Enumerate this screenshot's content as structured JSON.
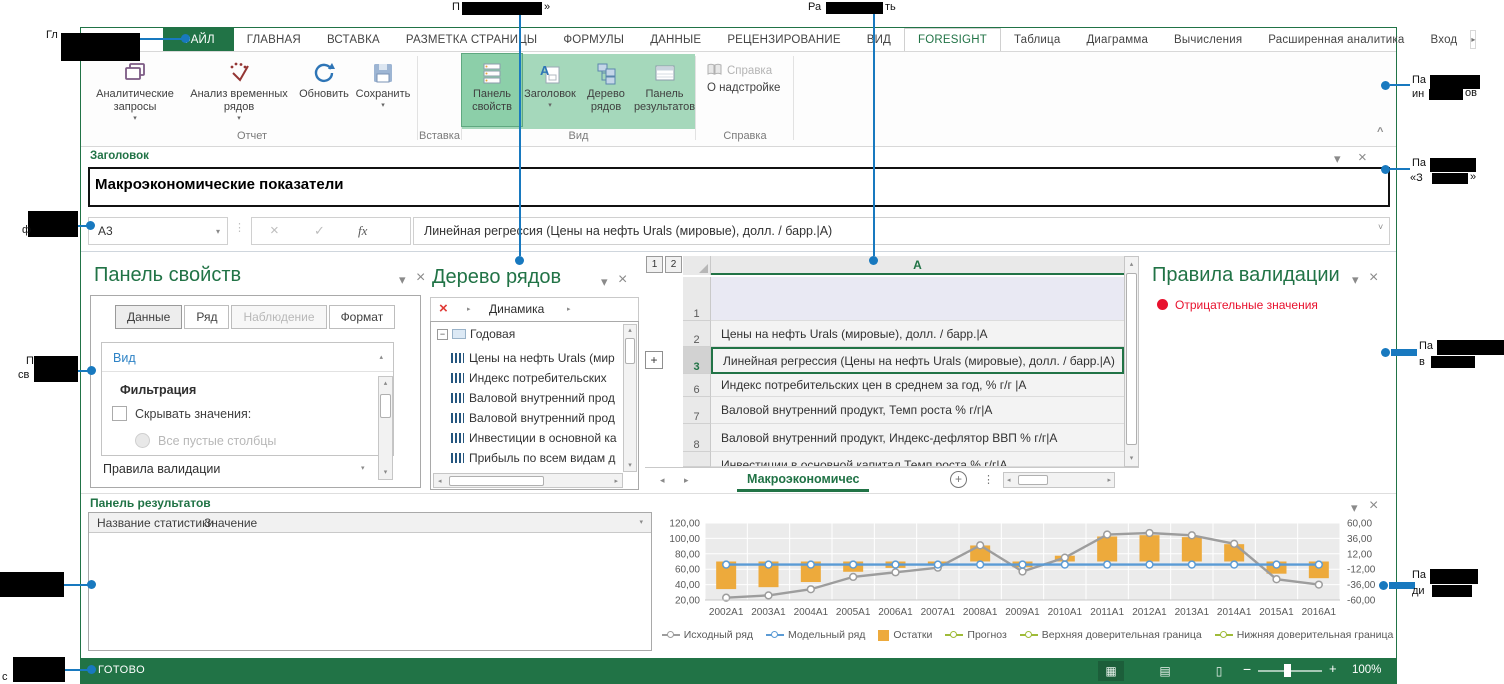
{
  "ribbon": {
    "tabs": [
      {
        "label": "ФАЙЛ"
      },
      {
        "label": "ГЛАВНАЯ"
      },
      {
        "label": "ВСТАВКА"
      },
      {
        "label": "РАЗМЕТКА СТРАНИЦЫ"
      },
      {
        "label": "ФОРМУЛЫ"
      },
      {
        "label": "ДАННЫЕ"
      },
      {
        "label": "РЕЦЕНЗИРОВАНИЕ"
      },
      {
        "label": "ВИД"
      },
      {
        "label": "FORESIGHT"
      },
      {
        "label": "Таблица"
      },
      {
        "label": "Диаграмма"
      },
      {
        "label": "Вычисления"
      },
      {
        "label": "Расширенная аналитика"
      },
      {
        "label": "Вход"
      }
    ],
    "groups": {
      "report": {
        "label": "Отчет",
        "buttons": [
          {
            "label": "Аналитические запросы"
          },
          {
            "label": "Анализ временных рядов"
          },
          {
            "label": "Обновить"
          },
          {
            "label": "Сохранить"
          }
        ]
      },
      "insert": {
        "label": "Вставка"
      },
      "view": {
        "label": "Вид",
        "buttons": [
          {
            "label": "Панель свойств"
          },
          {
            "label": "Заголовок"
          },
          {
            "label": "Дерево рядов"
          },
          {
            "label": "Панель результатов"
          }
        ]
      },
      "help": {
        "label": "Справка",
        "items": [
          {
            "label": "Справка"
          },
          {
            "label": "О надстройке"
          }
        ]
      }
    }
  },
  "title_panel": {
    "label": "Заголовок",
    "value": "Макроэкономические показатели"
  },
  "formula_bar": {
    "cell_ref": "A3",
    "fx": "fx",
    "formula": "Линейная регрессия (Цены на нефть Urals (мировые), долл. / барр.|А)"
  },
  "properties_panel": {
    "title": "Панель свойств",
    "tabs": [
      {
        "label": "Данные"
      },
      {
        "label": "Ряд"
      },
      {
        "label": "Наблюдение"
      },
      {
        "label": "Формат"
      }
    ],
    "section_link": "Вид",
    "filter_title": "Фильтрация",
    "hide_values_label": "Скрывать значения:",
    "empty_columns_label": "Все пустые столбцы",
    "validation_label": "Правила валидации"
  },
  "series_tree": {
    "title": "Дерево рядов",
    "toolbar_label": "Динамика",
    "root": "Годовая",
    "items": [
      {
        "label": "Цены на нефть Urals (мир"
      },
      {
        "label": "Индекс  потребительских"
      },
      {
        "label": "Валовой внутренний прод"
      },
      {
        "label": "Валовой внутренний прод"
      },
      {
        "label": "Инвестиции в основной ка"
      },
      {
        "label": "Прибыль по всем видам д"
      }
    ]
  },
  "sheet": {
    "outline": [
      "1",
      "2"
    ],
    "column": "A",
    "rows": [
      {
        "num": "1",
        "text": ""
      },
      {
        "num": "2",
        "text": "Цены на нефть Urals (мировые), долл. / барр.|А"
      },
      {
        "num": "3",
        "text": "Линейная регрессия (Цены на нефть Urals (мировые), долл. / барр.|А)"
      },
      {
        "num": "6",
        "text": "Индекс  потребительских цен в среднем за год, % г/г |А"
      },
      {
        "num": "7",
        "text": "Валовой внутренний продукт, Темп роста % г/г|А"
      },
      {
        "num": "8",
        "text": "Валовой внутренний продукт, Индекс-дефлятор ВВП % г/г|А"
      },
      {
        "num": "",
        "text": "Инвестиции в основной капитал Темп роста % г/г|А"
      }
    ],
    "tab": "Макроэкономичес"
  },
  "validation_panel": {
    "title": "Правила валидации",
    "rule": "Отрицательные значения",
    "rule_color": "#e8112d"
  },
  "results_panel": {
    "title": "Панель результатов",
    "col1": "Название статистики",
    "col2": "Значение"
  },
  "status": {
    "ready": "ГОТОВО",
    "zoom": "100%"
  },
  "annotations": {
    "top_left": "Гл",
    "ribbon_top_pre": "П",
    "ribbon_top_post": "»",
    "analytics_top_pre": "Ра",
    "analytics_top_post": "ть",
    "formula_left": "ф",
    "props_left_l1": "П",
    "props_left_l2": "св",
    "status_left": "с",
    "toolbar_right_l1": "Па",
    "toolbar_right_l2pre": "ин",
    "toolbar_right_l2post": "ов",
    "title_right_l1": "Па",
    "title_right_l2pre": "«З",
    "title_right_l2post": "»",
    "validation_right_l1": "Па",
    "validation_right_l2": "в",
    "chart_right_l1": "Па",
    "chart_right_l2": "ди"
  },
  "chart_data": {
    "type": "combo line+bar",
    "categories": [
      "2002A1",
      "2003A1",
      "2004A1",
      "2005A1",
      "2006A1",
      "2007A1",
      "2008A1",
      "2009A1",
      "2010A1",
      "2011A1",
      "2012A1",
      "2013A1",
      "2014A1",
      "2015A1",
      "2016A1"
    ],
    "left_axis": {
      "min": 20,
      "max": 120,
      "step": 20,
      "ticks": [
        "120,00",
        "100,00",
        "80,00",
        "60,00",
        "40,00",
        "20,00"
      ]
    },
    "right_axis": {
      "min": -60,
      "max": 60,
      "step": 24,
      "ticks": [
        "60,00",
        "36,00",
        "12,00",
        "-12,00",
        "-36,00",
        "-60,00"
      ]
    },
    "grid": true,
    "legend_position": "bottom",
    "series": [
      {
        "name": "Исходный ряд",
        "type": "line",
        "axis": "left",
        "color": "#9d9d9d",
        "values": [
          23,
          26,
          34,
          50,
          56,
          62,
          91,
          57,
          75,
          105,
          107,
          104,
          93,
          47,
          40
        ]
      },
      {
        "name": "Модельный ряд",
        "type": "line",
        "axis": "left",
        "color": "#5b9bd5",
        "values": [
          66,
          66,
          66,
          66,
          66,
          66,
          66,
          66,
          66,
          66,
          66,
          66,
          66,
          66,
          66
        ]
      },
      {
        "name": "Остатки",
        "type": "bar",
        "axis": "right",
        "color": "#edaa3c",
        "values": [
          -43,
          -40,
          -32,
          -16,
          -10,
          -4,
          25,
          -9,
          9,
          39,
          41,
          38,
          27,
          -19,
          -26
        ]
      },
      {
        "name": "Прогноз",
        "type": "line",
        "axis": "left",
        "color": "#9fbb38",
        "values": []
      },
      {
        "name": "Верхняя доверительная граница",
        "type": "line",
        "axis": "left",
        "color": "#9fbb38",
        "values": []
      },
      {
        "name": "Нижняя доверительная граница",
        "type": "line",
        "axis": "left",
        "color": "#9fbb38",
        "values": []
      }
    ]
  }
}
